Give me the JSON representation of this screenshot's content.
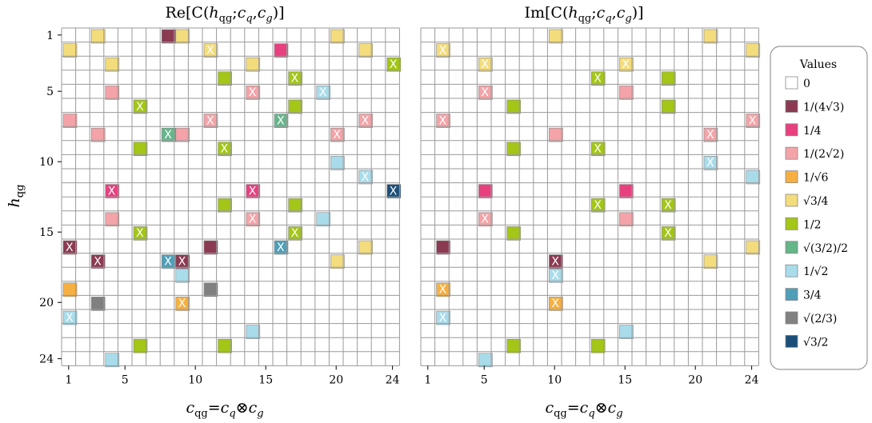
{
  "chart_data": [
    {
      "type": "heatmap",
      "title": "Re[C(h_qg;c_q,c_g)]",
      "title_parts": {
        "re": "Re[C(",
        "h": "h",
        "sub": "qg",
        "mid": ";",
        "cq": "c",
        "cq_sub": "q",
        "comma": ",",
        "cg": "c",
        "cg_sub": "g",
        "close": ")]"
      },
      "xlabel": "c_qg=c_q⊗c_g",
      "ylabel": "h_qg",
      "x_range": [
        1,
        24
      ],
      "y_range": [
        1,
        24
      ],
      "x_ticks": [
        "1",
        "5",
        "10",
        "15",
        "20",
        "24"
      ],
      "y_ticks": [
        "1",
        "5",
        "10",
        "15",
        "20",
        "24"
      ],
      "grid": true,
      "cells": [
        {
          "h": 1,
          "c": 3,
          "v": "sqrt3/4"
        },
        {
          "h": 1,
          "c": 8,
          "v": "1/(4sqrt3)"
        },
        {
          "h": 1,
          "c": 9,
          "v": "sqrt3/4"
        },
        {
          "h": 1,
          "c": 20,
          "v": "sqrt3/4"
        },
        {
          "h": 2,
          "c": 1,
          "v": "sqrt3/4"
        },
        {
          "h": 2,
          "c": 11,
          "v": "sqrt3/4",
          "x": true
        },
        {
          "h": 2,
          "c": 16,
          "v": "1/4"
        },
        {
          "h": 2,
          "c": 22,
          "v": "sqrt3/4"
        },
        {
          "h": 3,
          "c": 4,
          "v": "sqrt3/4"
        },
        {
          "h": 3,
          "c": 14,
          "v": "sqrt3/4"
        },
        {
          "h": 3,
          "c": 24,
          "v": "1/2",
          "x": true
        },
        {
          "h": 4,
          "c": 12,
          "v": "1/2"
        },
        {
          "h": 4,
          "c": 17,
          "v": "1/2",
          "x": true
        },
        {
          "h": 5,
          "c": 4,
          "v": "1/(2sqrt2)"
        },
        {
          "h": 5,
          "c": 14,
          "v": "1/(2sqrt2)",
          "x": true
        },
        {
          "h": 5,
          "c": 19,
          "v": "1/sqrt2",
          "x": true
        },
        {
          "h": 6,
          "c": 6,
          "v": "1/2",
          "x": true
        },
        {
          "h": 6,
          "c": 17,
          "v": "1/2"
        },
        {
          "h": 7,
          "c": 1,
          "v": "1/(2sqrt2)"
        },
        {
          "h": 7,
          "c": 11,
          "v": "1/(2sqrt2)",
          "x": true
        },
        {
          "h": 7,
          "c": 16,
          "v": "sqrt(3/2)/2",
          "x": true
        },
        {
          "h": 7,
          "c": 22,
          "v": "1/(2sqrt2)",
          "x": true
        },
        {
          "h": 8,
          "c": 3,
          "v": "1/(2sqrt2)"
        },
        {
          "h": 8,
          "c": 8,
          "v": "sqrt(3/2)/2",
          "x": true
        },
        {
          "h": 8,
          "c": 9,
          "v": "1/(2sqrt2)"
        },
        {
          "h": 8,
          "c": 20,
          "v": "1/(2sqrt2)",
          "x": true
        },
        {
          "h": 9,
          "c": 6,
          "v": "1/2"
        },
        {
          "h": 9,
          "c": 12,
          "v": "1/2",
          "x": true
        },
        {
          "h": 10,
          "c": 20,
          "v": "1/sqrt2"
        },
        {
          "h": 11,
          "c": 22,
          "v": "1/sqrt2",
          "x": true
        },
        {
          "h": 12,
          "c": 4,
          "v": "1/4",
          "x": true
        },
        {
          "h": 12,
          "c": 14,
          "v": "1/4",
          "x": true
        },
        {
          "h": 12,
          "c": 24,
          "v": "sqrt3/2",
          "x": true
        },
        {
          "h": 13,
          "c": 12,
          "v": "1/2"
        },
        {
          "h": 13,
          "c": 17,
          "v": "1/2"
        },
        {
          "h": 14,
          "c": 4,
          "v": "1/(2sqrt2)"
        },
        {
          "h": 14,
          "c": 14,
          "v": "1/(2sqrt2)",
          "x": true
        },
        {
          "h": 14,
          "c": 19,
          "v": "1/sqrt2"
        },
        {
          "h": 15,
          "c": 6,
          "v": "1/2",
          "x": true
        },
        {
          "h": 15,
          "c": 17,
          "v": "1/2",
          "x": true
        },
        {
          "h": 16,
          "c": 1,
          "v": "1/(4sqrt3)",
          "x": true
        },
        {
          "h": 16,
          "c": 11,
          "v": "1/(4sqrt3)"
        },
        {
          "h": 16,
          "c": 16,
          "v": "3/4",
          "x": true
        },
        {
          "h": 16,
          "c": 22,
          "v": "sqrt3/4"
        },
        {
          "h": 17,
          "c": 3,
          "v": "1/(4sqrt3)",
          "x": true
        },
        {
          "h": 17,
          "c": 8,
          "v": "3/4",
          "x": true
        },
        {
          "h": 17,
          "c": 9,
          "v": "1/(4sqrt3)",
          "x": true
        },
        {
          "h": 17,
          "c": 20,
          "v": "sqrt3/4"
        },
        {
          "h": 18,
          "c": 9,
          "v": "1/sqrt2"
        },
        {
          "h": 19,
          "c": 1,
          "v": "1/sqrt6"
        },
        {
          "h": 19,
          "c": 11,
          "v": "sqrt(2/3)"
        },
        {
          "h": 20,
          "c": 3,
          "v": "sqrt(2/3)"
        },
        {
          "h": 20,
          "c": 9,
          "v": "1/sqrt6",
          "x": true
        },
        {
          "h": 21,
          "c": 1,
          "v": "1/sqrt2",
          "x": true
        },
        {
          "h": 22,
          "c": 14,
          "v": "1/sqrt2"
        },
        {
          "h": 23,
          "c": 6,
          "v": "1/2"
        },
        {
          "h": 23,
          "c": 12,
          "v": "1/2"
        },
        {
          "h": 24,
          "c": 4,
          "v": "1/sqrt2"
        }
      ]
    },
    {
      "type": "heatmap",
      "title": "Im[C(h_qg;c_q,c_g)]",
      "title_parts": {
        "re": "Im[C(",
        "h": "h",
        "sub": "qg",
        "mid": ";",
        "cq": "c",
        "cq_sub": "q",
        "comma": ",",
        "cg": "c",
        "cg_sub": "g",
        "close": ")]"
      },
      "xlabel": "c_qg=c_q⊗c_g",
      "x_range": [
        1,
        24
      ],
      "y_range": [
        1,
        24
      ],
      "x_ticks": [
        "1",
        "5",
        "10",
        "15",
        "20",
        "24"
      ],
      "grid": true,
      "cells": [
        {
          "h": 1,
          "c": 10,
          "v": "sqrt3/4"
        },
        {
          "h": 1,
          "c": 21,
          "v": "sqrt3/4"
        },
        {
          "h": 2,
          "c": 2,
          "v": "sqrt3/4",
          "x": true
        },
        {
          "h": 2,
          "c": 24,
          "v": "sqrt3/4"
        },
        {
          "h": 3,
          "c": 5,
          "v": "sqrt3/4",
          "x": true
        },
        {
          "h": 3,
          "c": 15,
          "v": "sqrt3/4",
          "x": true
        },
        {
          "h": 4,
          "c": 13,
          "v": "1/2",
          "x": true
        },
        {
          "h": 4,
          "c": 18,
          "v": "1/2"
        },
        {
          "h": 5,
          "c": 5,
          "v": "1/(2sqrt2)",
          "x": true
        },
        {
          "h": 5,
          "c": 15,
          "v": "1/(2sqrt2)"
        },
        {
          "h": 6,
          "c": 7,
          "v": "1/2"
        },
        {
          "h": 6,
          "c": 18,
          "v": "1/2"
        },
        {
          "h": 7,
          "c": 2,
          "v": "1/(2sqrt2)",
          "x": true
        },
        {
          "h": 7,
          "c": 24,
          "v": "1/(2sqrt2)",
          "x": true
        },
        {
          "h": 8,
          "c": 10,
          "v": "1/(2sqrt2)"
        },
        {
          "h": 8,
          "c": 21,
          "v": "1/(2sqrt2)",
          "x": true
        },
        {
          "h": 9,
          "c": 7,
          "v": "1/2"
        },
        {
          "h": 9,
          "c": 13,
          "v": "1/2",
          "x": true
        },
        {
          "h": 10,
          "c": 21,
          "v": "1/sqrt2",
          "x": true
        },
        {
          "h": 11,
          "c": 24,
          "v": "1/sqrt2"
        },
        {
          "h": 12,
          "c": 5,
          "v": "1/4"
        },
        {
          "h": 12,
          "c": 15,
          "v": "1/4"
        },
        {
          "h": 13,
          "c": 13,
          "v": "1/2",
          "x": true
        },
        {
          "h": 13,
          "c": 18,
          "v": "1/2",
          "x": true
        },
        {
          "h": 14,
          "c": 5,
          "v": "1/(2sqrt2)",
          "x": true
        },
        {
          "h": 14,
          "c": 15,
          "v": "1/(2sqrt2)"
        },
        {
          "h": 15,
          "c": 7,
          "v": "1/2"
        },
        {
          "h": 15,
          "c": 18,
          "v": "1/2",
          "x": true
        },
        {
          "h": 16,
          "c": 2,
          "v": "1/(4sqrt3)"
        },
        {
          "h": 16,
          "c": 24,
          "v": "sqrt3/4"
        },
        {
          "h": 17,
          "c": 10,
          "v": "1/(4sqrt3)",
          "x": true
        },
        {
          "h": 17,
          "c": 21,
          "v": "sqrt3/4"
        },
        {
          "h": 18,
          "c": 10,
          "v": "1/sqrt2",
          "x": true
        },
        {
          "h": 19,
          "c": 2,
          "v": "1/sqrt6",
          "x": true
        },
        {
          "h": 20,
          "c": 10,
          "v": "1/sqrt6",
          "x": true
        },
        {
          "h": 21,
          "c": 2,
          "v": "1/sqrt2",
          "x": true
        },
        {
          "h": 22,
          "c": 15,
          "v": "1/sqrt2"
        },
        {
          "h": 23,
          "c": 7,
          "v": "1/2"
        },
        {
          "h": 23,
          "c": 13,
          "v": "1/2"
        },
        {
          "h": 24,
          "c": 5,
          "v": "1/sqrt2"
        }
      ]
    }
  ],
  "legend": {
    "title": "Values",
    "placement": "right",
    "entries": [
      {
        "key": "0",
        "label": "0",
        "color": "#ffffff"
      },
      {
        "key": "1/(4sqrt3)",
        "label": "1/(4√3)",
        "color": "#8b3a52"
      },
      {
        "key": "1/4",
        "label": "1/4",
        "color": "#e8407f"
      },
      {
        "key": "1/(2sqrt2)",
        "label": "1/(2√2)",
        "color": "#f4a3a8"
      },
      {
        "key": "1/sqrt6",
        "label": "1/√6",
        "color": "#f6b042"
      },
      {
        "key": "sqrt3/4",
        "label": "√3/4",
        "color": "#f3dc7c"
      },
      {
        "key": "1/2",
        "label": "1/2",
        "color": "#a3c617"
      },
      {
        "key": "sqrt(3/2)/2",
        "label": "√(3/2)/2",
        "color": "#66b68b"
      },
      {
        "key": "1/sqrt2",
        "label": "1/√2",
        "color": "#a9dceb"
      },
      {
        "key": "3/4",
        "label": "3/4",
        "color": "#4f9fb9"
      },
      {
        "key": "sqrt(2/3)",
        "label": "√(2/3)",
        "color": "#808080"
      },
      {
        "key": "sqrt3/2",
        "label": "√3/2",
        "color": "#1b4f7a"
      }
    ]
  }
}
